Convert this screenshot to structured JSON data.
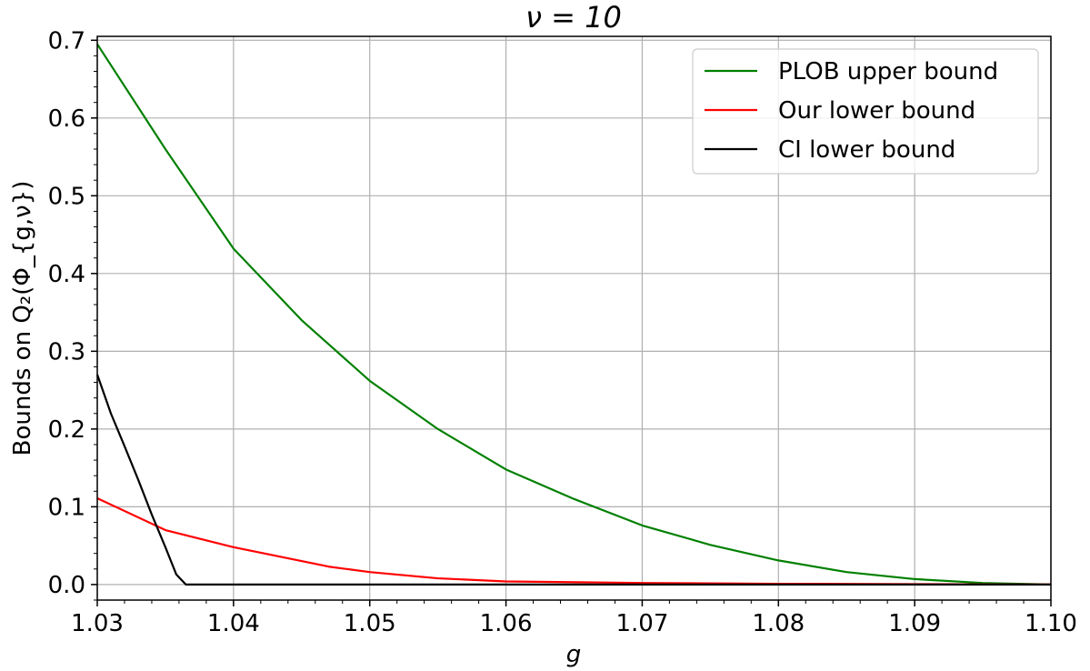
{
  "chart_data": {
    "type": "line",
    "title": "ν = 10",
    "xlabel": "g",
    "ylabel": "Bounds on Q₂(Φ_{g,ν})",
    "xlim": [
      1.03,
      1.1
    ],
    "ylim": [
      -0.02,
      0.705
    ],
    "x_ticks": [
      1.03,
      1.04,
      1.05,
      1.06,
      1.07,
      1.08,
      1.09,
      1.1
    ],
    "x_tick_labels": [
      "1.03",
      "1.04",
      "1.05",
      "1.06",
      "1.07",
      "1.08",
      "1.09",
      "1.10"
    ],
    "y_ticks": [
      0.0,
      0.1,
      0.2,
      0.3,
      0.4,
      0.5,
      0.6,
      0.7
    ],
    "y_tick_labels": [
      "0.0",
      "0.1",
      "0.2",
      "0.3",
      "0.4",
      "0.5",
      "0.6",
      "0.7"
    ],
    "grid": true,
    "legend_position": "top-right",
    "series": [
      {
        "name": "PLOB upper bound",
        "color": "#008000",
        "x": [
          1.03,
          1.035,
          1.04,
          1.045,
          1.05,
          1.055,
          1.06,
          1.065,
          1.07,
          1.075,
          1.08,
          1.085,
          1.09,
          1.095,
          1.1
        ],
        "y": [
          0.695,
          0.56,
          0.432,
          0.34,
          0.262,
          0.2,
          0.148,
          0.11,
          0.076,
          0.051,
          0.031,
          0.016,
          0.007,
          0.002,
          0.0
        ]
      },
      {
        "name": "Our lower bound",
        "color": "#ff0000",
        "x": [
          1.03,
          1.035,
          1.04,
          1.047,
          1.05,
          1.055,
          1.06,
          1.07,
          1.08,
          1.09,
          1.1
        ],
        "y": [
          0.111,
          0.07,
          0.048,
          0.023,
          0.016,
          0.008,
          0.004,
          0.002,
          0.001,
          0.0005,
          0.0
        ]
      },
      {
        "name": "CI lower bound",
        "color": "#000000",
        "x": [
          1.03,
          1.031,
          1.032,
          1.033,
          1.034,
          1.035,
          1.0358,
          1.0365,
          1.04,
          1.05,
          1.06,
          1.07,
          1.08,
          1.09,
          1.1
        ],
        "y": [
          0.27,
          0.22,
          0.178,
          0.135,
          0.09,
          0.048,
          0.013,
          0.0,
          0.0,
          0.0,
          0.0,
          0.0,
          0.0,
          0.0,
          0.0
        ]
      }
    ]
  }
}
